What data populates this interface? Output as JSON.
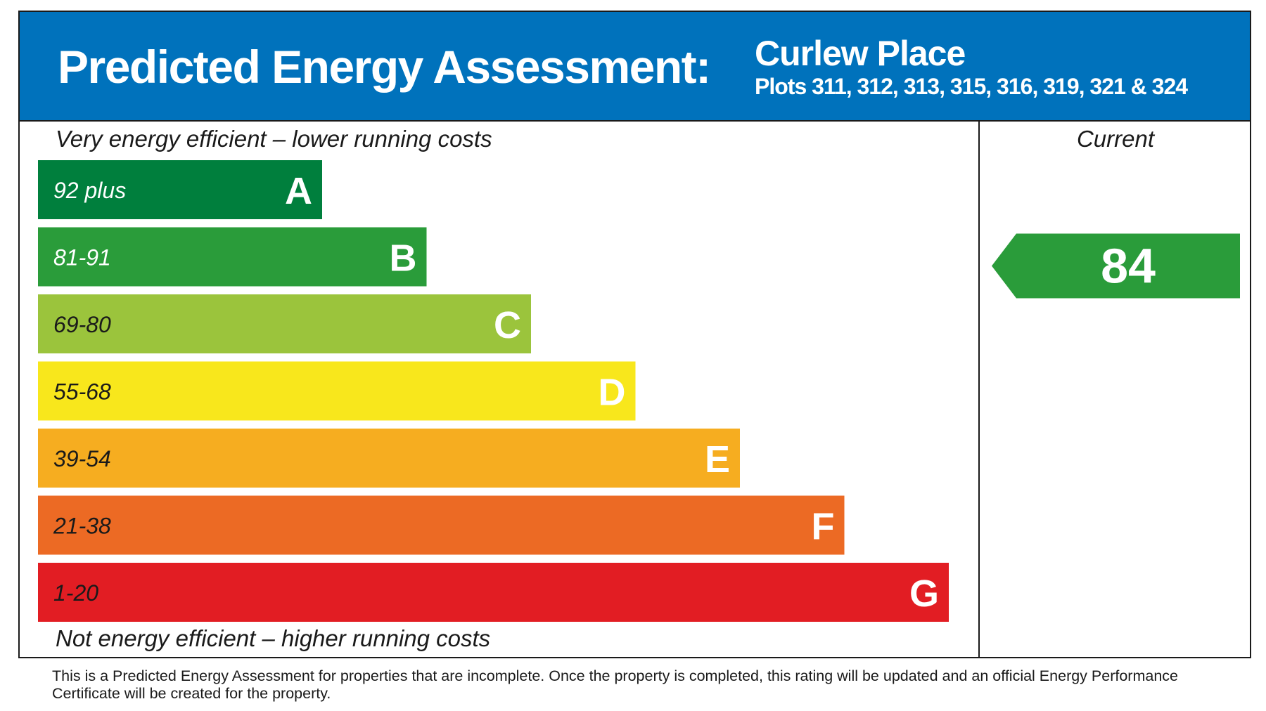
{
  "header": {
    "title": "Predicted Energy Assessment:",
    "place": "Curlew Place",
    "plots": "Plots 311, 312, 313, 315, 316, 319, 321 & 324",
    "background_color": "#0072bc"
  },
  "chart_data": {
    "type": "bar",
    "top_caption": "Very energy efficient – lower running costs",
    "bottom_caption": "Not energy efficient – higher running costs",
    "bands": [
      {
        "letter": "A",
        "range": "92 plus",
        "color": "#007f3d"
      },
      {
        "letter": "B",
        "range": "81-91",
        "color": "#2a9c3a"
      },
      {
        "letter": "C",
        "range": "69-80",
        "color": "#9bc43c"
      },
      {
        "letter": "D",
        "range": "55-68",
        "color": "#f8e71c"
      },
      {
        "letter": "E",
        "range": "39-54",
        "color": "#f6ad20"
      },
      {
        "letter": "F",
        "range": "21-38",
        "color": "#ec6a24"
      },
      {
        "letter": "G",
        "range": "1-20",
        "color": "#e21d23"
      }
    ],
    "current": {
      "label": "Current",
      "value": 84,
      "band": "B",
      "color": "#2a9c3a"
    }
  },
  "footnote": "This is a Predicted Energy Assessment for properties that are incomplete. Once the property is completed, this rating will be updated and an official Energy Performance Certificate will be created for the property."
}
